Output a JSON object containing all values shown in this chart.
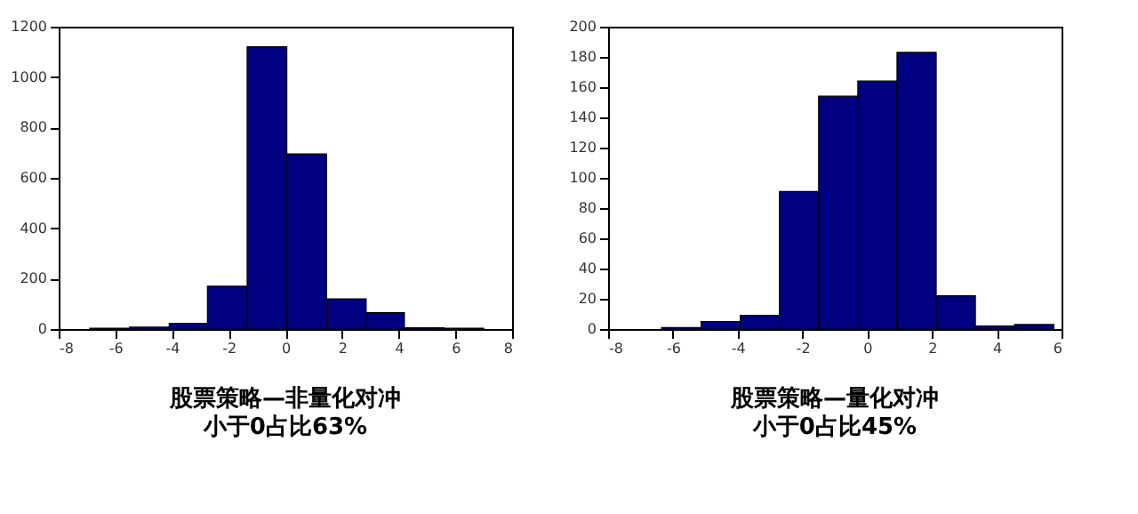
{
  "chart_data": [
    {
      "type": "histogram",
      "title": "股票策略—非量化对冲",
      "subtitle": "小于0占比63%",
      "bins": [
        -6.9,
        -5.5,
        -4.1,
        -2.75,
        -1.35,
        0.05,
        1.45,
        2.85,
        4.2,
        5.6,
        7.0
      ],
      "values": [
        3,
        8,
        23,
        170,
        1120,
        695,
        120,
        65,
        5,
        3
      ],
      "color": "#000080",
      "xlim": [
        -8,
        8
      ],
      "xticks": [
        -8,
        -6,
        -4,
        -2,
        0,
        2,
        4,
        6,
        8
      ],
      "ylim": [
        0,
        1200
      ],
      "yticks": [
        0,
        200,
        400,
        600,
        800,
        1000,
        1200
      ],
      "grid": false
    },
    {
      "type": "histogram",
      "title": "股票策略—量化对冲",
      "subtitle": "小于0占比45%",
      "bins": [
        -6.35,
        -5.13,
        -3.92,
        -2.71,
        -1.5,
        -0.29,
        0.92,
        2.13,
        3.34,
        4.55,
        5.76
      ],
      "values": [
        1,
        5,
        9,
        91,
        154,
        164,
        183,
        22,
        2,
        3
      ],
      "color": "#000080",
      "xlim": [
        -8,
        6
      ],
      "xticks": [
        -8,
        -6,
        -4,
        -2,
        0,
        2,
        4,
        6
      ],
      "ylim": [
        0,
        200
      ],
      "yticks": [
        0,
        20,
        40,
        60,
        80,
        100,
        120,
        140,
        160,
        180,
        200
      ],
      "grid": false
    }
  ]
}
